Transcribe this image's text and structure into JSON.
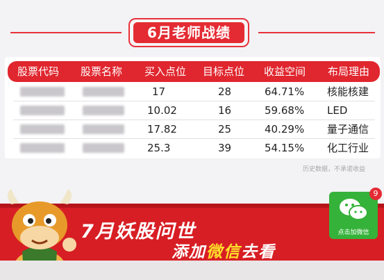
{
  "title": "6月老师战绩",
  "table": {
    "headers": [
      "股票代码",
      "股票名称",
      "买入点位",
      "目标点位",
      "收益空间",
      "布局理由"
    ],
    "rows": [
      {
        "buy": "17",
        "target": "28",
        "gain": "64.71%",
        "reason": "核能核建"
      },
      {
        "buy": "10.02",
        "target": "16",
        "gain": "59.68%",
        "reason": "LED"
      },
      {
        "buy": "17.82",
        "target": "25",
        "gain": "40.29%",
        "reason": "量子通信"
      },
      {
        "buy": "25.3",
        "target": "39",
        "gain": "54.15%",
        "reason": "化工行业"
      }
    ]
  },
  "note": "历史数据，不承诺收益",
  "banner": {
    "line1": "7月妖股问世",
    "line2_a": "添加",
    "line2_b": "微信",
    "line2_c": "去看"
  },
  "wechat": {
    "label": "点击加微信",
    "badge": "9"
  },
  "colors": {
    "accent": "#e42b33",
    "wechat": "#35b23a",
    "highlight": "#ffde2a"
  }
}
